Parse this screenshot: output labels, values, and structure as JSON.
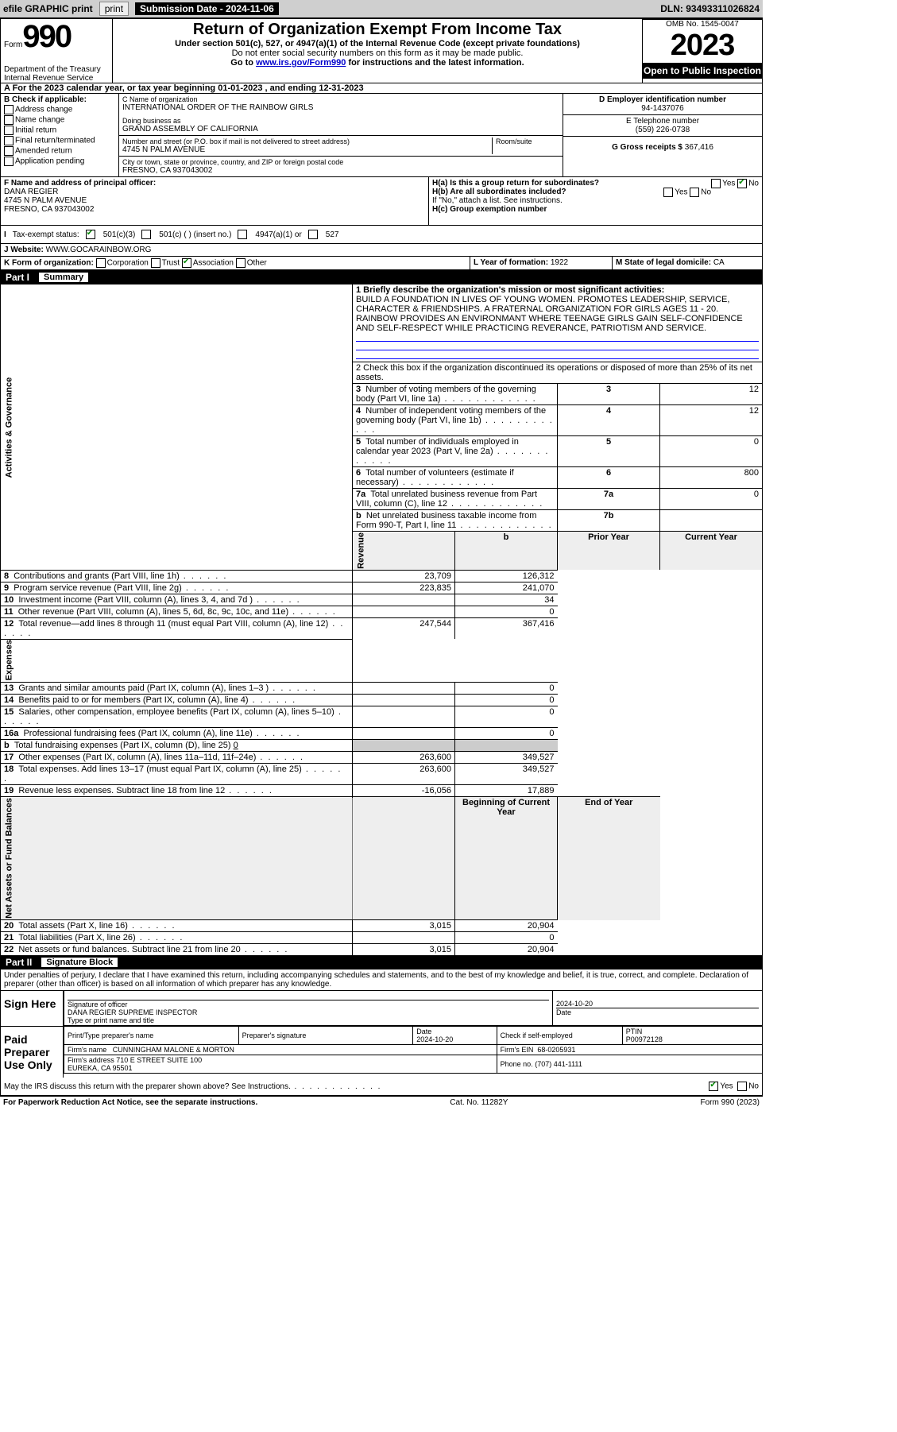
{
  "top": {
    "efile": "efile GRAPHIC print",
    "sub_label": "Submission Date - 2024-11-06",
    "dln": "DLN: 93493311026824"
  },
  "header": {
    "form": "Form",
    "number": "990",
    "title": "Return of Organization Exempt From Income Tax",
    "subtitle": "Under section 501(c), 527, or 4947(a)(1) of the Internal Revenue Code (except private foundations)",
    "note1": "Do not enter social security numbers on this form as it may be made public.",
    "note2": "Go to",
    "note2_link": "www.irs.gov/Form990",
    "note2_tail": "for instructions and the latest information.",
    "dept": "Department of the Treasury Internal Revenue Service",
    "omb": "OMB No. 1545-0047",
    "year": "2023",
    "open": "Open to Public Inspection"
  },
  "line_a": {
    "text": "A For the 2023 calendar year, or tax year beginning",
    "begin": "01-01-2023",
    "mid": ", and ending",
    "end": "12-31-2023"
  },
  "b": {
    "label": "B Check if applicable:",
    "items": [
      "Address change",
      "Name change",
      "Initial return",
      "Final return/terminated",
      "Amended return",
      "Application pending"
    ]
  },
  "c": {
    "name_label": "C Name of organization",
    "name": "INTERNATIONAL ORDER OF THE RAINBOW GIRLS",
    "dba_label": "Doing business as",
    "dba": "GRAND ASSEMBLY OF CALIFORNIA",
    "addr_label": "Number and street (or P.O. box if mail is not delivered to street address)",
    "room": "Room/suite",
    "addr": "4745 N PALM AVENUE",
    "city_label": "City or town, state or province, country, and ZIP or foreign postal code",
    "city": "FRESNO, CA  937043002"
  },
  "d": {
    "label": "D Employer identification number",
    "value": "94-1437076"
  },
  "e": {
    "label": "E Telephone number",
    "value": "(559) 226-0738"
  },
  "g": {
    "label": "G Gross receipts $",
    "value": "367,416"
  },
  "f": {
    "label": "F Name and address of principal officer:",
    "name": "DANA REGIER",
    "addr1": "4745 N PALM AVENUE",
    "addr2": "FRESNO, CA  937043002"
  },
  "h": {
    "a": "H(a)  Is this a group return for subordinates?",
    "a_yes": "Yes",
    "a_no": "No",
    "b": "H(b)  Are all subordinates included?",
    "b_tail": "If \"No,\" attach a list. See instructions.",
    "c": "H(c)  Group exemption number"
  },
  "i": {
    "label": "I",
    "text": "Tax-exempt status:",
    "opt1": "501(c)(3)",
    "opt2": "501(c) (  ) (insert no.)",
    "opt3": "4947(a)(1) or",
    "opt4": "527"
  },
  "j": {
    "label": "J",
    "text": "Website:",
    "value": "WWW.GOCARAINBOW.ORG"
  },
  "k": {
    "label": "K Form of organization:",
    "opts": [
      "Corporation",
      "Trust",
      "Association",
      "Other"
    ]
  },
  "l": {
    "label": "L Year of formation:",
    "value": "1922"
  },
  "m": {
    "label": "M State of legal domicile:",
    "value": "CA"
  },
  "part1": {
    "label": "Part I",
    "title": "Summary",
    "line1_label": "1  Briefly describe the organization's mission or most significant activities:",
    "mission": "BUILD A FOUNDATION IN LIVES OF YOUNG WOMEN. PROMOTES LEADERSHIP, SERVICE, CHARACTER & FRIENDSHIPS. A FRATERNAL ORGANIZATION FOR GIRLS AGES 11 - 20. RAINBOW PROVIDES AN ENVIRONMANT WHERE TEENAGE GIRLS GAIN SELF-CONFIDENCE AND SELF-RESPECT WHILE PRACTICING REVERANCE, PATRIOTISM AND SERVICE.",
    "line2": "2  Check this box       if the organization discontinued its operations or disposed of more than 25% of its net assets.",
    "rows_gov": [
      {
        "n": "3",
        "label": "Number of voting members of the governing body (Part VI, line 1a)",
        "box": "3",
        "val": "12"
      },
      {
        "n": "4",
        "label": "Number of independent voting members of the governing body (Part VI, line 1b)",
        "box": "4",
        "val": "12"
      },
      {
        "n": "5",
        "label": "Total number of individuals employed in calendar year 2023 (Part V, line 2a)",
        "box": "5",
        "val": "0"
      },
      {
        "n": "6",
        "label": "Total number of volunteers (estimate if necessary)",
        "box": "6",
        "val": "800"
      },
      {
        "n": "7a",
        "label": "Total unrelated business revenue from Part VIII, column (C), line 12",
        "box": "7a",
        "val": "0"
      },
      {
        "n": "b",
        "label": "Net unrelated business taxable income from Form 990-T, Part I, line 11",
        "box": "7b",
        "val": ""
      }
    ],
    "vert_gov": "Activities & Governance",
    "vert_rev": "Revenue",
    "vert_exp": "Expenses",
    "vert_net": "Net Assets or Fund Balances",
    "prior": "Prior Year",
    "current": "Current Year",
    "rev": [
      {
        "n": "8",
        "label": "Contributions and grants (Part VIII, line 1h)",
        "p": "23,709",
        "c": "126,312"
      },
      {
        "n": "9",
        "label": "Program service revenue (Part VIII, line 2g)",
        "p": "223,835",
        "c": "241,070"
      },
      {
        "n": "10",
        "label": "Investment income (Part VIII, column (A), lines 3, 4, and 7d )",
        "p": "",
        "c": "34"
      },
      {
        "n": "11",
        "label": "Other revenue (Part VIII, column (A), lines 5, 6d, 8c, 9c, 10c, and 11e)",
        "p": "",
        "c": "0"
      },
      {
        "n": "12",
        "label": "Total revenue—add lines 8 through 11 (must equal Part VIII, column (A), line 12)",
        "p": "247,544",
        "c": "367,416"
      }
    ],
    "exp": [
      {
        "n": "13",
        "label": "Grants and similar amounts paid (Part IX, column (A), lines 1–3 )",
        "p": "",
        "c": "0"
      },
      {
        "n": "14",
        "label": "Benefits paid to or for members (Part IX, column (A), line 4)",
        "p": "",
        "c": "0"
      },
      {
        "n": "15",
        "label": "Salaries, other compensation, employee benefits (Part IX, column (A), lines 5–10)",
        "p": "",
        "c": "0"
      },
      {
        "n": "16a",
        "label": "Professional fundraising fees (Part IX, column (A), line 11e)",
        "p": "",
        "c": "0"
      },
      {
        "n": "b",
        "label": "Total fundraising expenses (Part IX, column (D), line 25)",
        "tail": "0",
        "p": null,
        "c": null
      },
      {
        "n": "17",
        "label": "Other expenses (Part IX, column (A), lines 11a–11d, 11f–24e)",
        "p": "263,600",
        "c": "349,527"
      },
      {
        "n": "18",
        "label": "Total expenses. Add lines 13–17 (must equal Part IX, column (A), line 25)",
        "p": "263,600",
        "c": "349,527"
      },
      {
        "n": "19",
        "label": "Revenue less expenses. Subtract line 18 from line 12",
        "p": "-16,056",
        "c": "17,889"
      }
    ],
    "bcy": "Beginning of Current Year",
    "eoy": "End of Year",
    "net": [
      {
        "n": "20",
        "label": "Total assets (Part X, line 16)",
        "p": "3,015",
        "c": "20,904"
      },
      {
        "n": "21",
        "label": "Total liabilities (Part X, line 26)",
        "p": "",
        "c": "0"
      },
      {
        "n": "22",
        "label": "Net assets or fund balances. Subtract line 21 from line 20",
        "p": "3,015",
        "c": "20,904"
      }
    ]
  },
  "part2": {
    "label": "Part II",
    "title": "Signature Block",
    "declaration": "Under penalties of perjury, I declare that I have examined this return, including accompanying schedules and statements, and to the best of my knowledge and belief, it is true, correct, and complete. Declaration of preparer (other than officer) is based on all information of which preparer has any knowledge.",
    "sign_here": "Sign Here",
    "sig_of_officer": "Signature of officer",
    "officer": "DANA REGIER  SUPREME INSPECTOR",
    "type_label": "Type or print name and title",
    "date_label": "Date",
    "sig_date": "2024-10-20",
    "paid": "Paid Preparer Use Only",
    "prep_name_label": "Print/Type preparer's name",
    "prep_sig_label": "Preparer's signature",
    "prep_date": "2024-10-20",
    "check_self": "Check        if self-employed",
    "ptin_label": "PTIN",
    "ptin": "P00972128",
    "firm_name_label": "Firm's name",
    "firm_name": "CUNNINGHAM MALONE & MORTON",
    "firm_ein_label": "Firm's EIN",
    "firm_ein": "68-0205931",
    "firm_addr_label": "Firm's address",
    "firm_addr": "710 E STREET SUITE 100",
    "firm_city": "EUREKA, CA  95501",
    "phone_label": "Phone no.",
    "phone": "(707) 441-1111",
    "irs_discuss": "May the IRS discuss this return with the preparer shown above? See Instructions.",
    "yes": "Yes",
    "no": "No"
  },
  "footer": {
    "left": "For Paperwork Reduction Act Notice, see the separate instructions.",
    "mid": "Cat. No. 11282Y",
    "right": "Form 990 (2023)"
  }
}
